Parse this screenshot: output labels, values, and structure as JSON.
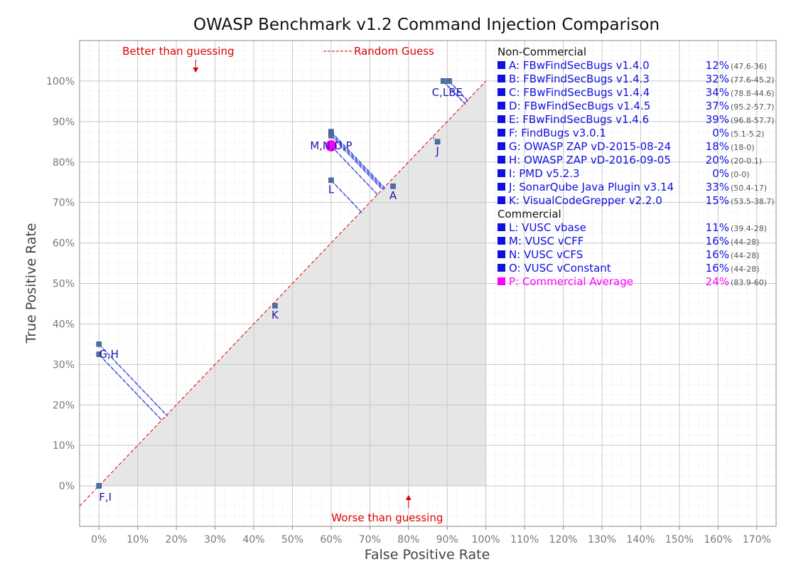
{
  "colors": {
    "point": "#4a6fa5",
    "label": "#1a1aaa",
    "legend_text": "#1010e0",
    "commercial_avg": "#ff00ff",
    "random_line": "#e00000",
    "annotation": "#e00000",
    "shade": "#e6e6e6",
    "tick_text": "#777777",
    "axis_title": "#444444"
  },
  "chart_data": {
    "type": "scatter",
    "title": "OWASP Benchmark v1.2 Command Injection Comparison",
    "xlabel": "False Positive Rate",
    "ylabel": "True Positive Rate",
    "xlim": [
      -5,
      175
    ],
    "ylim": [
      -10,
      110
    ],
    "grid": true,
    "legend_position": "right",
    "x_ticks": [
      "0%",
      "10%",
      "20%",
      "30%",
      "40%",
      "50%",
      "60%",
      "70%",
      "80%",
      "90%",
      "100%",
      "110%",
      "120%",
      "130%",
      "140%",
      "150%",
      "160%",
      "170%"
    ],
    "y_ticks": [
      "0%",
      "10%",
      "20%",
      "30%",
      "40%",
      "50%",
      "60%",
      "70%",
      "80%",
      "90%",
      "100%"
    ],
    "random_guess_label": "Random Guess",
    "annotations": {
      "better": "Better than guessing",
      "worse": "Worse than guessing"
    },
    "points": [
      {
        "x": 76,
        "y": 74,
        "label": "A"
      },
      {
        "x": 89,
        "y": 100,
        "label": "B"
      },
      {
        "x": 89,
        "y": 100,
        "label": "C"
      },
      {
        "x": 90.5,
        "y": 100,
        "label": "D"
      },
      {
        "x": 90.5,
        "y": 100,
        "label": "E"
      },
      {
        "x": 0,
        "y": 0,
        "label": "F"
      },
      {
        "x": 0,
        "y": 35,
        "label": "G"
      },
      {
        "x": 0,
        "y": 32.5,
        "label": "H"
      },
      {
        "x": 0,
        "y": 0,
        "label": "I"
      },
      {
        "x": 87.5,
        "y": 85,
        "label": "J"
      },
      {
        "x": 45.5,
        "y": 44.5,
        "label": "K"
      },
      {
        "x": 60,
        "y": 75.5,
        "label": "L"
      },
      {
        "x": 60,
        "y": 87.5,
        "label": "M"
      },
      {
        "x": 60,
        "y": 87,
        "label": "N"
      },
      {
        "x": 60,
        "y": 86.5,
        "label": "O"
      }
    ],
    "commercial_average": {
      "x": 60,
      "y": 84,
      "label": "P"
    },
    "point_labels": [
      {
        "text": "A",
        "x": 76,
        "y": 74
      },
      {
        "text": "C,LBE",
        "x": 88,
        "y": 100
      },
      {
        "text": "F,I",
        "x": 0,
        "y": 0
      },
      {
        "text": "G,H",
        "x": 0,
        "y": 32.5
      },
      {
        "text": "J",
        "x": 87.5,
        "y": 85
      },
      {
        "text": "K",
        "x": 45.5,
        "y": 44.5
      },
      {
        "text": "L",
        "x": 60,
        "y": 75.5
      },
      {
        "text": "M,N,O,P",
        "x": 60,
        "y": 84
      }
    ],
    "legend": {
      "noncommercial_header": "Non-Commercial",
      "commercial_header": "Commercial",
      "noncommercial": [
        {
          "name": "A: FBwFindSecBugs v1.4.0",
          "score": "12%",
          "detail": "(47.6-36)"
        },
        {
          "name": "B: FBwFindSecBugs v1.4.3",
          "score": "32%",
          "detail": "(77.6-45.2)"
        },
        {
          "name": "C: FBwFindSecBugs v1.4.4",
          "score": "34%",
          "detail": "(78.8-44.6)"
        },
        {
          "name": "D: FBwFindSecBugs v1.4.5",
          "score": "37%",
          "detail": "(95.2-57.7)"
        },
        {
          "name": "E: FBwFindSecBugs v1.4.6",
          "score": "39%",
          "detail": "(96.8-57.7)"
        },
        {
          "name": "F: FindBugs v3.0.1",
          "score": "0%",
          "detail": "(5.1-5.2)"
        },
        {
          "name": "G: OWASP ZAP vD-2015-08-24",
          "score": "18%",
          "detail": "(18-0)"
        },
        {
          "name": "H: OWASP ZAP vD-2016-09-05",
          "score": "20%",
          "detail": "(20-0.1)"
        },
        {
          "name": "I:   PMD v5.2.3",
          "score": "0%",
          "detail": "(0-0)"
        },
        {
          "name": "J:  SonarQube Java Plugin v3.14",
          "score": "33%",
          "detail": "(50.4-17)"
        },
        {
          "name": "K: VisualCodeGrepper v2.2.0",
          "score": "15%",
          "detail": "(53.5-38.7)"
        }
      ],
      "commercial": [
        {
          "name": "L: VUSC vbase",
          "score": "11%",
          "detail": "(39.4-28)"
        },
        {
          "name": "M: VUSC vCFF",
          "score": "16%",
          "detail": "(44-28)"
        },
        {
          "name": "N: VUSC vCFS",
          "score": "16%",
          "detail": "(44-28)"
        },
        {
          "name": "O: VUSC vConstant",
          "score": "16%",
          "detail": "(44-28)"
        },
        {
          "name": "P: Commercial Average",
          "score": "24%",
          "detail": "(83.9-60)",
          "highlight": true
        }
      ]
    }
  }
}
